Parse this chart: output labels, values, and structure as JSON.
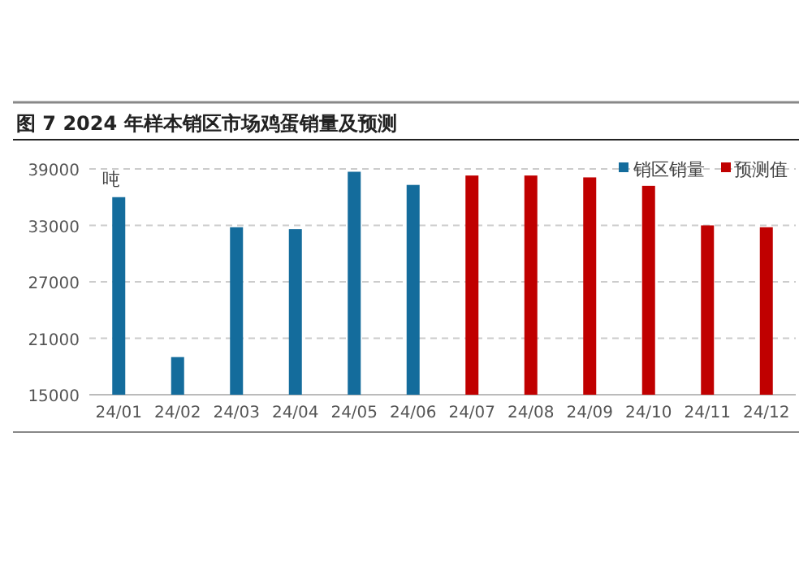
{
  "chart_data": {
    "type": "bar",
    "title": "图 7 2024 年样本销区市场鸡蛋销量及预测",
    "ylabel": "吨",
    "categories": [
      "24/01",
      "24/02",
      "24/03",
      "24/04",
      "24/05",
      "24/06",
      "24/07",
      "24/08",
      "24/09",
      "24/10",
      "24/11",
      "24/12"
    ],
    "series": [
      {
        "name": "销区销量",
        "color": "#146c9c",
        "values": [
          36000,
          19000,
          32800,
          32600,
          38700,
          37300,
          null,
          null,
          null,
          null,
          null,
          null
        ]
      },
      {
        "name": "预测值",
        "color": "#c00000",
        "values": [
          null,
          null,
          null,
          null,
          null,
          null,
          38300,
          38300,
          38100,
          37200,
          33000,
          32800
        ]
      }
    ],
    "ylim": [
      15000,
      39000
    ],
    "yticks": [
      15000,
      21000,
      27000,
      33000,
      39000
    ],
    "grid": "y",
    "legend": "top right"
  }
}
